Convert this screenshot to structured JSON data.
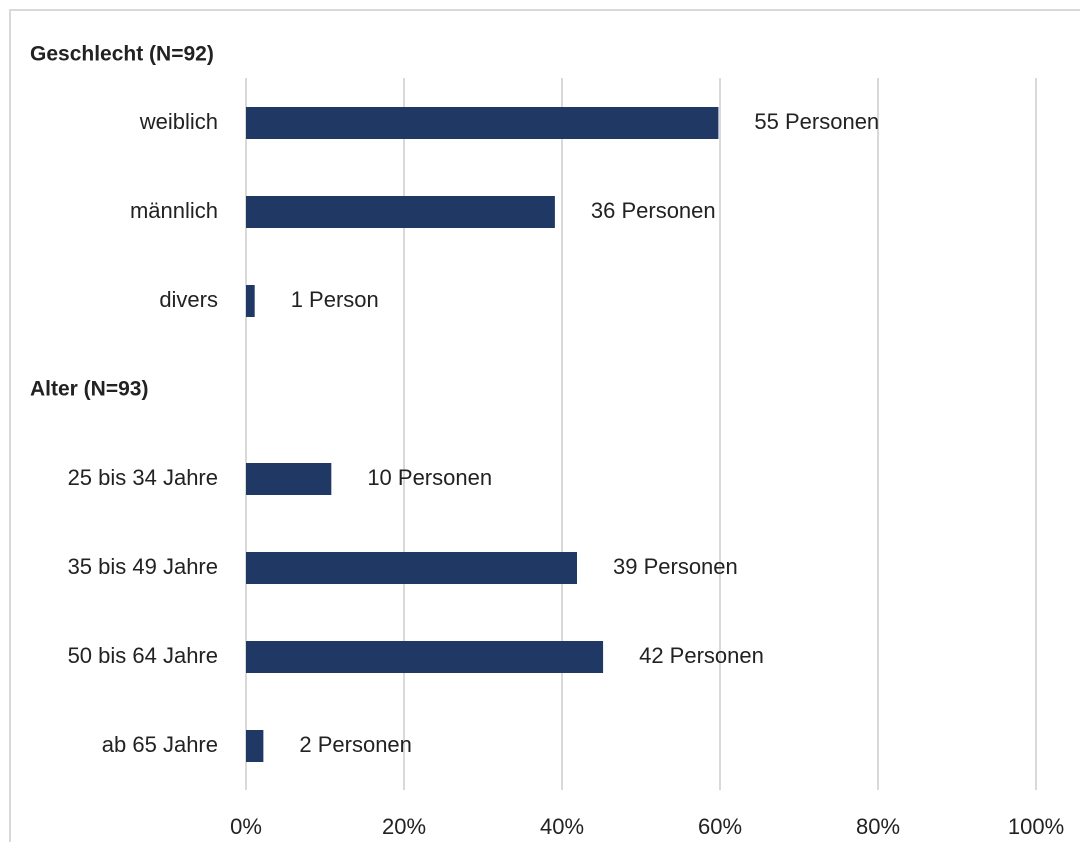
{
  "chart_data": {
    "type": "bar",
    "orientation": "horizontal",
    "categories": [
      "Geschlecht (N=92)",
      "weiblich",
      "männlich",
      "divers",
      "Alter (N=93)",
      "25 bis 34 Jahre",
      "35 bis 49 Jahre",
      "50 bis 64 Jahre",
      "ab 65 Jahre"
    ],
    "values": [
      null,
      59.8,
      39.1,
      1.1,
      null,
      10.8,
      41.9,
      45.2,
      2.2
    ],
    "annotations": [
      null,
      "55 Personen",
      "36 Personen",
      "1 Person",
      null,
      "10 Personen",
      "39 Personen",
      "42 Personen",
      "2 Personen"
    ],
    "color": "#203864",
    "xlim": [
      0,
      100
    ],
    "xticks": [
      {
        "value": 0,
        "label": "0%"
      },
      {
        "value": 20,
        "label": "20%"
      },
      {
        "value": 40,
        "label": "40%"
      },
      {
        "value": 60,
        "label": "60%"
      },
      {
        "value": 80,
        "label": "80%"
      },
      {
        "value": 100,
        "label": "100%"
      }
    ],
    "grid": true
  }
}
